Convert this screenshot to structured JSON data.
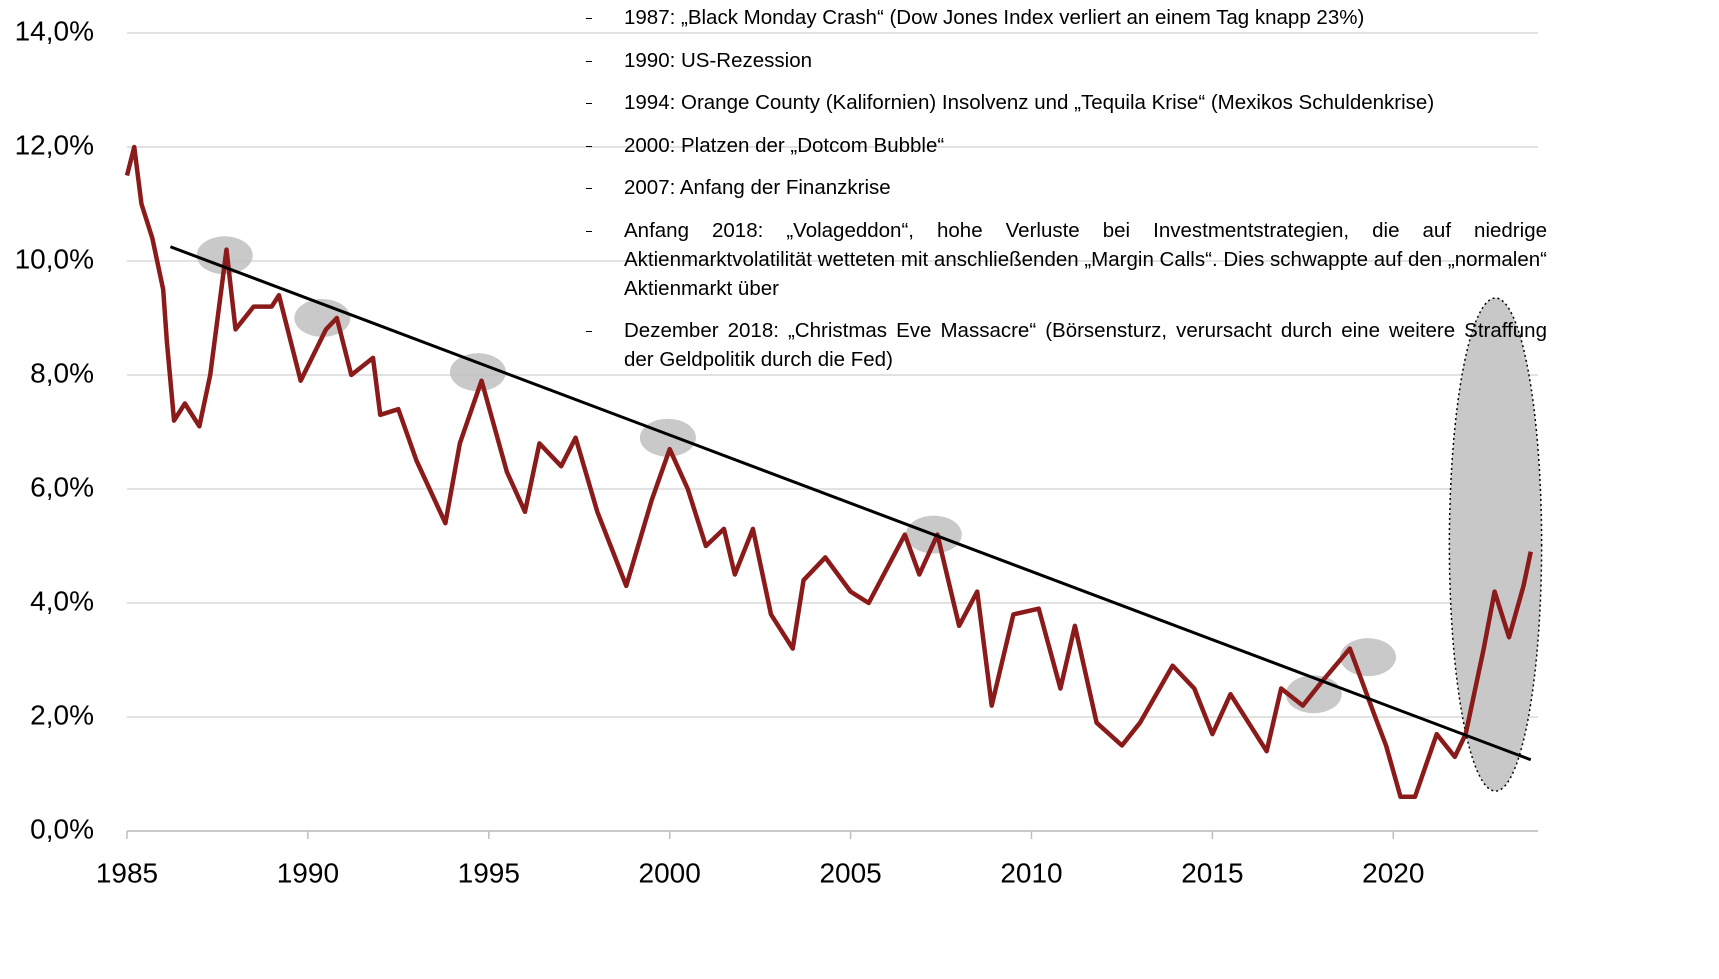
{
  "chart_data": {
    "type": "line",
    "x": [
      1985.0,
      1985.2,
      1985.4,
      1985.7,
      1986.0,
      1986.1,
      1986.3,
      1986.6,
      1987.0,
      1987.3,
      1987.75,
      1988.0,
      1988.5,
      1989.0,
      1989.2,
      1989.8,
      1990.5,
      1990.8,
      1991.2,
      1991.8,
      1992.0,
      1992.5,
      1993.0,
      1993.8,
      1994.2,
      1994.8,
      1995.5,
      1996.0,
      1996.4,
      1997.0,
      1997.4,
      1998.0,
      1998.8,
      1999.5,
      2000.0,
      2000.5,
      2001.0,
      2001.5,
      2001.8,
      2002.3,
      2002.8,
      2003.4,
      2003.7,
      2004.3,
      2005.0,
      2005.5,
      2006.5,
      2006.9,
      2007.4,
      2008.0,
      2008.5,
      2008.9,
      2009.5,
      2010.2,
      2010.8,
      2011.2,
      2011.8,
      2012.5,
      2013.0,
      2013.9,
      2014.5,
      2015.0,
      2015.5,
      2016.5,
      2016.9,
      2017.5,
      2018.0,
      2018.8,
      2019.5,
      2019.8,
      2020.2,
      2020.6,
      2021.2,
      2021.7,
      2022.0,
      2022.5,
      2022.8,
      2023.2,
      2023.6,
      2023.8
    ],
    "series": [
      {
        "color": "#8b1a1a",
        "values": [
          11.5,
          12.0,
          11.0,
          10.4,
          9.5,
          8.6,
          7.2,
          7.5,
          7.1,
          8.0,
          10.2,
          8.8,
          9.2,
          9.2,
          9.4,
          7.9,
          8.8,
          9.0,
          8.0,
          8.3,
          7.3,
          7.4,
          6.5,
          5.4,
          6.8,
          7.9,
          6.3,
          5.6,
          6.8,
          6.4,
          6.9,
          5.6,
          4.3,
          5.8,
          6.7,
          6.0,
          5.0,
          5.3,
          4.5,
          5.3,
          3.8,
          3.2,
          4.4,
          4.8,
          4.2,
          4.0,
          5.2,
          4.5,
          5.2,
          3.6,
          4.2,
          2.2,
          3.8,
          3.9,
          2.5,
          3.6,
          1.9,
          1.5,
          1.9,
          2.9,
          2.5,
          1.7,
          2.4,
          1.4,
          2.5,
          2.2,
          2.6,
          3.2,
          2.0,
          1.5,
          0.6,
          0.6,
          1.7,
          1.3,
          1.7,
          3.2,
          4.2,
          3.4,
          4.3,
          4.9
        ]
      }
    ],
    "trend_line": {
      "x": [
        1986.2,
        2023.8
      ],
      "y": [
        10.25,
        1.25
      ],
      "color": "#000000"
    },
    "highlights": [
      {
        "x": 1987.7,
        "y": 10.1
      },
      {
        "x": 1990.4,
        "y": 9.0
      },
      {
        "x": 1994.7,
        "y": 8.05
      },
      {
        "x": 1999.95,
        "y": 6.9
      },
      {
        "x": 2007.3,
        "y": 5.2
      },
      {
        "x": 2017.8,
        "y": 2.4
      },
      {
        "x": 2019.3,
        "y": 3.05
      }
    ],
    "region": {
      "x": [
        2021.55,
        2024.1
      ],
      "y": [
        0.7,
        9.35
      ]
    },
    "xlim": [
      1985,
      2024
    ],
    "ylim": [
      0,
      14
    ],
    "xticks": [
      1985,
      1990,
      1995,
      2000,
      2005,
      2010,
      2015,
      2020
    ],
    "yticks": [
      {
        "value": 0,
        "label": "0,0%"
      },
      {
        "value": 2,
        "label": "2,0%"
      },
      {
        "value": 4,
        "label": "4,0%"
      },
      {
        "value": 6,
        "label": "6,0%"
      },
      {
        "value": 8,
        "label": "8,0%"
      },
      {
        "value": 10,
        "label": "10,0%"
      },
      {
        "value": 12,
        "label": "12,0%"
      },
      {
        "value": 14,
        "label": "14,0%"
      }
    ],
    "grid": true,
    "annotations": [
      "1987: „Black Monday Crash“ (Dow Jones Index verliert an einem Tag knapp 23%)",
      "1990: US-Rezession",
      "1994: Orange County (Kalifornien) Insolvenz und „Tequila Krise“ (Mexikos Schuldenkrise)",
      "2000: Platzen der „Dotcom Bubble“",
      "2007: Anfang der Finanzkrise",
      "Anfang 2018: „Volageddon“, hohe Verluste bei Investmentstrategien, die auf niedrige Aktienmarktvolatilität wetteten mit anschließenden „Margin Calls“. Dies schwappte auf den „normalen“ Aktienmarkt über",
      "Dezember 2018: „Christmas Eve Massacre“ (Börsensturz, verursacht durch eine weitere Straffung der Geldpolitik durch die Fed)"
    ]
  }
}
